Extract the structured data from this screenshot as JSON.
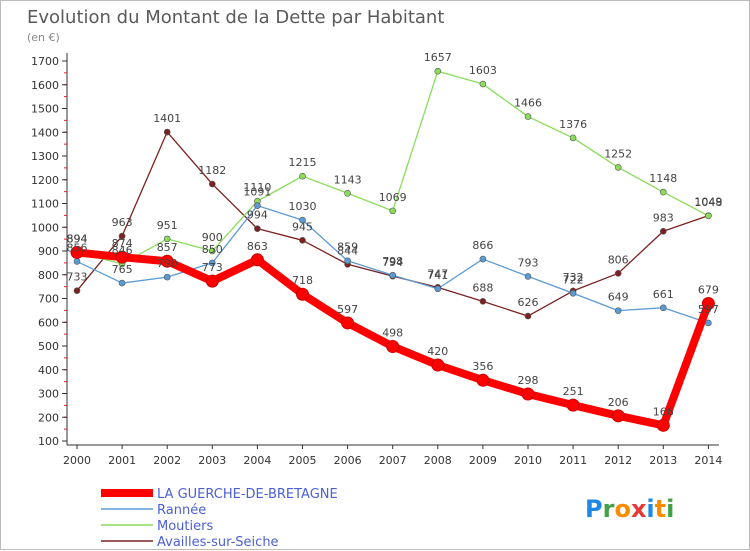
{
  "chart_data": {
    "type": "line",
    "title": "Evolution du Montant de la Dette par Habitant",
    "unit_label": "(en €)",
    "x": [
      "2000",
      "2001",
      "2002",
      "2003",
      "2004",
      "2005",
      "2006",
      "2007",
      "2008",
      "2009",
      "2010",
      "2011",
      "2012",
      "2013",
      "2014"
    ],
    "y_ticks": [
      "100",
      "200",
      "300",
      "400",
      "500",
      "600",
      "700",
      "800",
      "900",
      "1000",
      "1100",
      "1200",
      "1300",
      "1400",
      "1500",
      "1600",
      "1700"
    ],
    "ylim": [
      100,
      1700
    ],
    "grid": false,
    "legend_position": "bottom-left",
    "series": [
      {
        "name": "LA GUERCHE-DE-BRETAGNE",
        "color": "#ff0000",
        "values": [
          894,
          874,
          857,
          773,
          863,
          718,
          597,
          498,
          420,
          356,
          298,
          251,
          206,
          166,
          679
        ]
      },
      {
        "name": "Rannée",
        "color": "#5b9bd5",
        "values": [
          856,
          765,
          790,
          850,
          1091,
          1030,
          859,
          798,
          741,
          866,
          793,
          722,
          649,
          661,
          597
        ]
      },
      {
        "name": "Moutiers",
        "color": "#8bdc5a",
        "values": [
          894,
          846,
          951,
          900,
          1110,
          1215,
          1143,
          1069,
          1657,
          1603,
          1466,
          1376,
          1252,
          1148,
          1048
        ]
      },
      {
        "name": "Availles-sur-Seiche",
        "color": "#7b2121",
        "values": [
          733,
          963,
          1401,
          1182,
          994,
          945,
          844,
          794,
          747,
          688,
          626,
          732,
          806,
          983,
          1049
        ]
      }
    ],
    "label_texts": [
      [
        "894",
        "874",
        "857",
        "773",
        "863",
        "718",
        "597",
        "498",
        "420",
        "356",
        "298",
        "251",
        "206",
        "166",
        "679"
      ],
      [
        "856",
        "765",
        "790",
        "850",
        "1091",
        "1030",
        "859",
        "798",
        "741",
        "866",
        "793",
        "722",
        "649",
        "661",
        "597"
      ],
      [
        "894",
        "846",
        "951",
        "900",
        "1110",
        "1215",
        "1143",
        "1069",
        "1657",
        "1603",
        "1466",
        "1376",
        "1252",
        "1148",
        "1048"
      ],
      [
        "733",
        "963",
        "1401",
        "1182",
        "994",
        "945",
        "844",
        "794",
        "747",
        "688",
        "626",
        "732",
        "806",
        "983",
        "1049"
      ]
    ]
  },
  "brand": {
    "letters": [
      "P",
      "r",
      "o",
      "x",
      "i",
      "t",
      "i"
    ],
    "colors": [
      "#1e88e5",
      "#43a047",
      "#fb8c00",
      "#e53935",
      "#1e88e5",
      "#fb8c00",
      "#43a047"
    ]
  }
}
